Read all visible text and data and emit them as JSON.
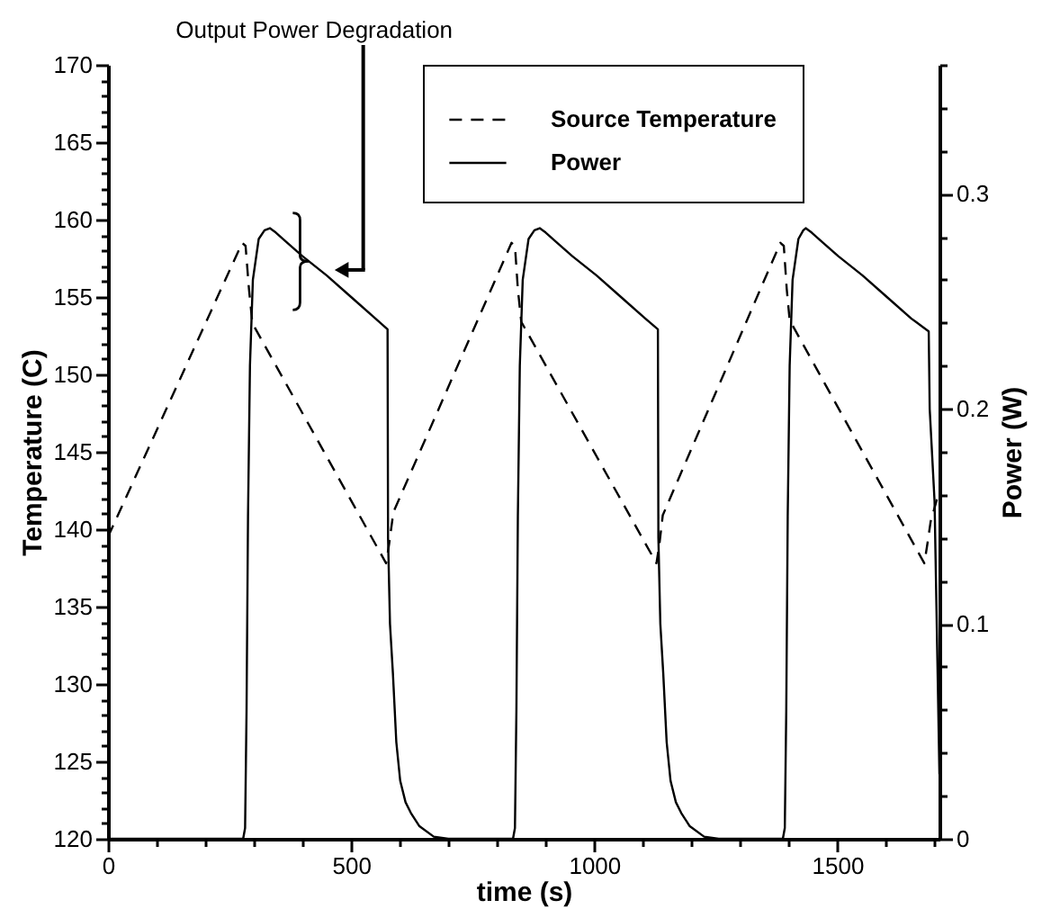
{
  "chart_data": {
    "type": "line",
    "xlabel": "time (s)",
    "ylabel": "Temperature (C)",
    "y2label": "Power (W)",
    "annotations": [
      "Output Power Degradation"
    ],
    "xlim": [
      0,
      1710
    ],
    "ylim": [
      120,
      170
    ],
    "y2lim": [
      0,
      0.36
    ],
    "xticks": [
      0,
      {
        "value": 100,
        "label": null
      },
      {
        "value": 200,
        "label": null
      },
      {
        "value": 300,
        "label": null
      },
      {
        "value": 400,
        "label": null
      },
      500,
      {
        "value": 600,
        "label": null
      },
      {
        "value": 700,
        "label": null
      },
      {
        "value": 800,
        "label": null
      },
      {
        "value": 900,
        "label": null
      },
      1000,
      {
        "value": 1100,
        "label": null
      },
      {
        "value": 1200,
        "label": null
      },
      {
        "value": 1300,
        "label": null
      },
      {
        "value": 1400,
        "label": null
      },
      1500,
      {
        "value": 1600,
        "label": null
      },
      {
        "value": 1700,
        "label": null
      }
    ],
    "yticks": [
      120,
      {
        "value": 121,
        "label": null
      },
      {
        "value": 122,
        "label": null
      },
      {
        "value": 123,
        "label": null
      },
      {
        "value": 124,
        "label": null
      },
      125,
      {
        "value": 126,
        "label": null
      },
      {
        "value": 127,
        "label": null
      },
      {
        "value": 128,
        "label": null
      },
      {
        "value": 129,
        "label": null
      },
      130,
      {
        "value": 131,
        "label": null
      },
      {
        "value": 132,
        "label": null
      },
      {
        "value": 133,
        "label": null
      },
      {
        "value": 134,
        "label": null
      },
      135,
      {
        "value": 136,
        "label": null
      },
      {
        "value": 137,
        "label": null
      },
      {
        "value": 138,
        "label": null
      },
      {
        "value": 139,
        "label": null
      },
      140,
      {
        "value": 141,
        "label": null
      },
      {
        "value": 142,
        "label": null
      },
      {
        "value": 143,
        "label": null
      },
      {
        "value": 144,
        "label": null
      },
      145,
      {
        "value": 146,
        "label": null
      },
      {
        "value": 147,
        "label": null
      },
      {
        "value": 148,
        "label": null
      },
      {
        "value": 149,
        "label": null
      },
      150,
      {
        "value": 151,
        "label": null
      },
      {
        "value": 152,
        "label": null
      },
      {
        "value": 153,
        "label": null
      },
      {
        "value": 154,
        "label": null
      },
      155,
      {
        "value": 156,
        "label": null
      },
      {
        "value": 157,
        "label": null
      },
      {
        "value": 158,
        "label": null
      },
      {
        "value": 159,
        "label": null
      },
      160,
      {
        "value": 161,
        "label": null
      },
      {
        "value": 162,
        "label": null
      },
      {
        "value": 163,
        "label": null
      },
      {
        "value": 164,
        "label": null
      },
      165,
      {
        "value": 166,
        "label": null
      },
      {
        "value": 167,
        "label": null
      },
      {
        "value": 168,
        "label": null
      },
      {
        "value": 169,
        "label": null
      },
      170
    ],
    "y2ticks": [
      0,
      {
        "value": 0.02,
        "label": null
      },
      {
        "value": 0.04,
        "label": null
      },
      {
        "value": 0.06,
        "label": null
      },
      {
        "value": 0.08,
        "label": null
      },
      0.1,
      {
        "value": 0.12,
        "label": null
      },
      {
        "value": 0.14,
        "label": null
      },
      {
        "value": 0.16,
        "label": null
      },
      {
        "value": 0.18,
        "label": null
      },
      0.2,
      {
        "value": 0.22,
        "label": null
      },
      {
        "value": 0.24,
        "label": null
      },
      {
        "value": 0.26,
        "label": null
      },
      {
        "value": 0.28,
        "label": null
      },
      0.3,
      {
        "value": 0.32,
        "label": null
      },
      {
        "value": 0.34,
        "label": null
      },
      {
        "value": 0.36,
        "label": null
      }
    ],
    "legend": "top right",
    "series": [
      {
        "name": "Source Temperature",
        "color": "#000000",
        "line_style": "dashed",
        "x": [
          0,
          276,
          283,
          290,
          297,
          572,
          578,
          587,
          830,
          837,
          843,
          850,
          1128,
          1134,
          1141,
          1383,
          1390,
          1396,
          1402,
          1679,
          1685,
          1692,
          1710
        ],
        "values": [
          139.5,
          158.5,
          158.3,
          155.5,
          153.3,
          137.8,
          139,
          141.1,
          158.5,
          158.3,
          155.5,
          153.4,
          137.8,
          139,
          140.9,
          158.5,
          158.3,
          155.5,
          153.5,
          137.8,
          139,
          140.5,
          142.5
        ]
      },
      {
        "name": "Power",
        "color": "#000000",
        "line_style": "solid",
        "axis": "y2",
        "x": [
          0,
          278,
          282,
          285,
          288,
          292,
          298,
          310,
          322,
          333,
          345,
          370,
          400,
          450,
          500,
          550,
          575,
          576,
          580,
          586,
          593,
          601,
          612,
          623,
          640,
          670,
          700,
          833,
          837,
          840,
          843,
          847,
          853,
          865,
          877,
          888,
          900,
          925,
          955,
          1005,
          1055,
          1105,
          1131,
          1132,
          1136,
          1142,
          1149,
          1157,
          1168,
          1179,
          1196,
          1226,
          1256,
          1388,
          1392,
          1395,
          1398,
          1402,
          1408,
          1420,
          1430,
          1435,
          1447,
          1472,
          1502,
          1552,
          1602,
          1652,
          1688,
          1690,
          1700,
          1710
        ],
        "values": [
          0,
          0,
          0.005,
          0.06,
          0.15,
          0.22,
          0.26,
          0.279,
          0.283,
          0.284,
          0.282,
          0.277,
          0.271,
          0.262,
          0.252,
          0.242,
          0.237,
          0.14,
          0.1,
          0.077,
          0.045,
          0.027,
          0.017,
          0.012,
          0.006,
          0.001,
          0,
          0,
          0.005,
          0.06,
          0.15,
          0.22,
          0.26,
          0.279,
          0.283,
          0.284,
          0.282,
          0.277,
          0.271,
          0.262,
          0.252,
          0.242,
          0.237,
          0.14,
          0.1,
          0.077,
          0.045,
          0.027,
          0.017,
          0.012,
          0.006,
          0.001,
          0,
          0,
          0.005,
          0.06,
          0.15,
          0.22,
          0.26,
          0.279,
          0.283,
          0.284,
          0.282,
          0.277,
          0.271,
          0.262,
          0.252,
          0.242,
          0.236,
          0.2,
          0.157,
          0.03
        ]
      }
    ]
  }
}
